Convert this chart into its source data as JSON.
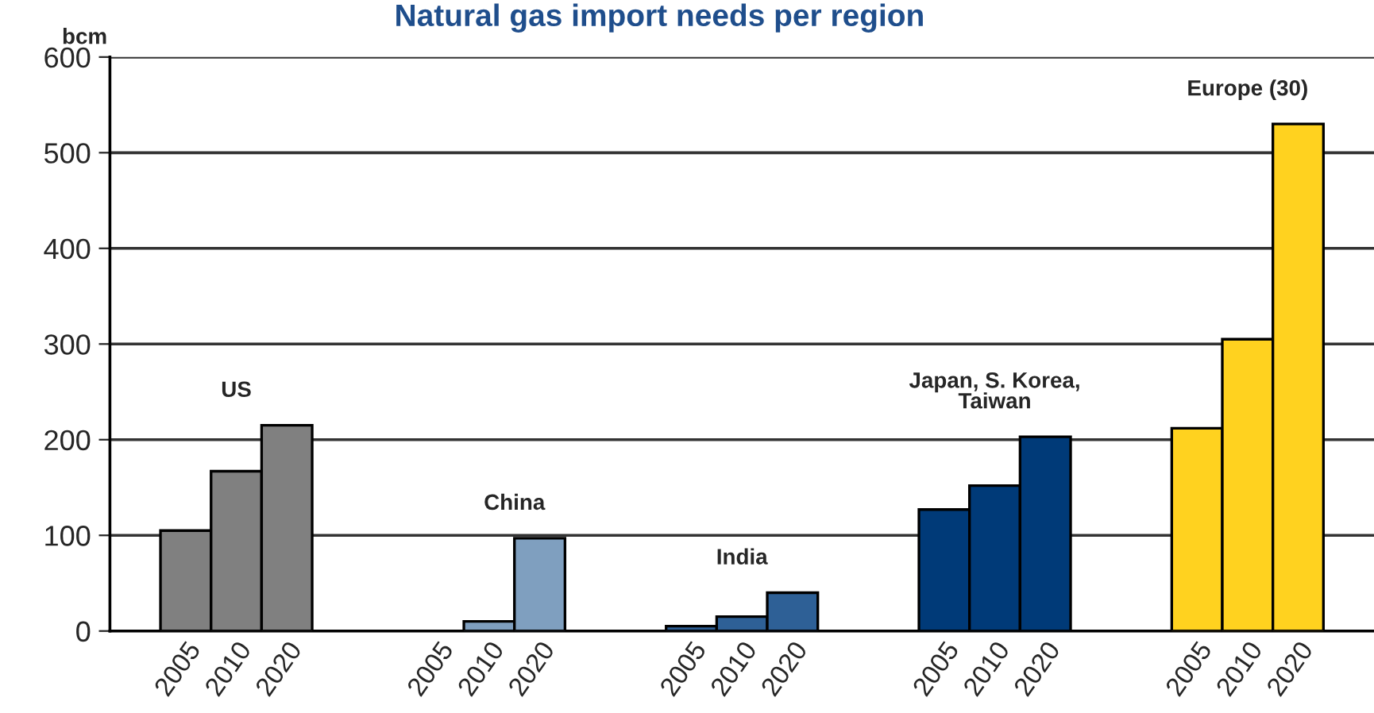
{
  "chart_data": {
    "type": "bar",
    "title": "Natural gas import needs per region",
    "ylabel": "bcm",
    "categories": [
      null,
      "2005",
      "2010",
      "2020",
      null,
      null,
      "2005",
      "2010",
      "2020",
      null,
      null,
      "2005",
      "2010",
      "2020",
      null,
      null,
      "2005",
      "2010",
      "2020",
      null,
      null,
      "2005",
      "2010",
      "2020",
      null
    ],
    "series": [
      {
        "name": "US",
        "color": "#808080",
        "values": [
          null,
          105,
          167,
          215,
          null,
          null,
          null,
          null,
          null,
          null,
          null,
          null,
          null,
          null,
          null,
          null,
          null,
          null,
          null,
          null,
          null,
          null,
          null,
          null,
          null
        ]
      },
      {
        "name": "China",
        "color": "#7f9fbf",
        "values": [
          null,
          null,
          null,
          null,
          null,
          null,
          null,
          10,
          97,
          null,
          null,
          null,
          null,
          null,
          null,
          null,
          null,
          null,
          null,
          null,
          null,
          null,
          null,
          null,
          null
        ]
      },
      {
        "name": "India",
        "color": "#2e6096",
        "values": [
          null,
          null,
          null,
          null,
          null,
          null,
          null,
          null,
          null,
          null,
          null,
          5,
          15,
          40,
          null,
          null,
          null,
          null,
          null,
          null,
          null,
          null,
          null,
          null,
          null
        ]
      },
      {
        "name": "Japan, S. Korea,\nTaiwan",
        "color": "#003a78",
        "values": [
          null,
          null,
          null,
          null,
          null,
          null,
          null,
          null,
          null,
          null,
          null,
          null,
          null,
          null,
          null,
          null,
          127,
          152,
          203,
          null,
          null,
          null,
          null,
          null,
          null
        ]
      },
      {
        "name": "Europe (30)",
        "color": "#ffd21f",
        "values": [
          null,
          null,
          null,
          null,
          null,
          null,
          null,
          null,
          null,
          null,
          null,
          null,
          null,
          null,
          null,
          null,
          null,
          null,
          null,
          null,
          null,
          212,
          305,
          530,
          null
        ]
      }
    ],
    "ylim": [
      0,
      600
    ],
    "yticks": [
      0,
      100,
      200,
      300,
      400,
      500,
      600
    ],
    "grid": "y",
    "legend": false
  }
}
